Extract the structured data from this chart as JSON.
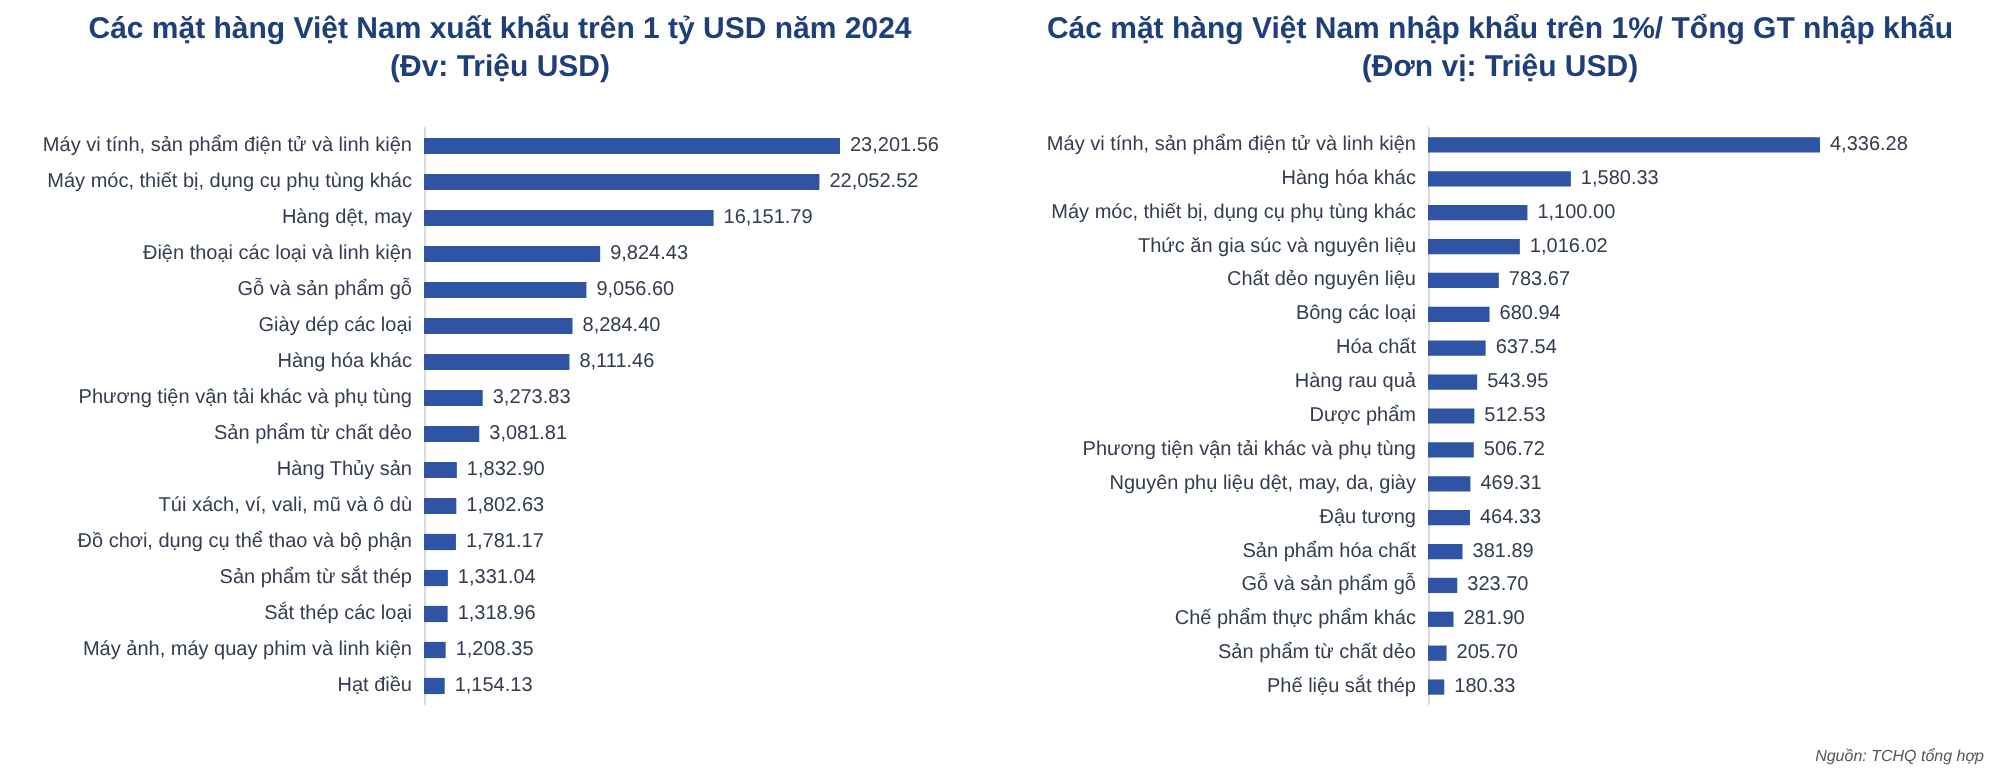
{
  "chart_data": [
    {
      "type": "bar",
      "orientation": "horizontal",
      "title": "Các mặt hàng Việt Nam xuất khẩu trên 1 tỷ USD năm 2024",
      "subtitle": "(Đv: Triệu USD)",
      "categories": [
        "Máy vi tính, sản phẩm điện tử và linh kiện",
        "Máy móc, thiết bị, dụng cụ phụ tùng khác",
        "Hàng dệt, may",
        "Điện thoại các loại và linh kiện",
        "Gỗ và sản phẩm gỗ",
        "Giày dép các loại",
        "Hàng hóa khác",
        "Phương tiện vận tải khác và phụ tùng",
        "Sản phẩm từ chất dẻo",
        "Hàng Thủy sản",
        "Túi xách, ví, vali, mũ và ô dù",
        "Đồ chơi, dụng cụ thể thao và bộ phận",
        "Sản phẩm từ sắt thép",
        "Sắt thép các loại",
        "Máy ảnh, máy quay phim và linh kiện",
        "Hạt điều"
      ],
      "values": [
        23201.56,
        22052.52,
        16151.79,
        9824.43,
        9056.6,
        8284.4,
        8111.46,
        3273.83,
        3081.81,
        1832.9,
        1802.63,
        1781.17,
        1331.04,
        1318.96,
        1208.35,
        1154.13
      ],
      "value_labels": [
        "23,201.56",
        "22,052.52",
        "16,151.79",
        "9,824.43",
        "9,056.60",
        "8,284.40",
        "8,111.46",
        "3,273.83",
        "3,081.81",
        "1,832.90",
        "1,802.63",
        "1,781.17",
        "1,331.04",
        "1,318.96",
        "1,208.35",
        "1,154.13"
      ],
      "color": "#2e54a3",
      "grid": false
    },
    {
      "type": "bar",
      "orientation": "horizontal",
      "title": "Các mặt hàng Việt Nam nhập khẩu trên 1%/ Tổng GT nhập khẩu",
      "subtitle": "(Đơn vị: Triệu USD)",
      "categories": [
        "Máy vi tính, sản phẩm điện tử và linh kiện",
        "Hàng hóa khác",
        "Máy móc, thiết bị, dụng cụ phụ tùng khác",
        "Thức ăn gia súc và nguyên liệu",
        "Chất dẻo nguyên liệu",
        "Bông các loại",
        "Hóa chất",
        "Hàng rau quả",
        "Dược phẩm",
        "Phương tiện vận tải khác và phụ tùng",
        "Nguyên phụ liệu dệt, may, da, giày",
        "Đậu tương",
        "Sản phẩm hóa chất",
        "Gỗ và sản phẩm gỗ",
        "Chế phẩm thực phẩm khác",
        "Sản phẩm từ chất dẻo",
        "Phế liệu sắt thép"
      ],
      "values": [
        4336.28,
        1580.33,
        1100.0,
        1016.02,
        783.67,
        680.94,
        637.54,
        543.95,
        512.53,
        506.72,
        469.31,
        464.33,
        381.89,
        323.7,
        281.9,
        205.7,
        180.33
      ],
      "value_labels": [
        "4,336.28",
        "1,580.33",
        "1,100.00",
        "1,016.02",
        "783.67",
        "680.94",
        "637.54",
        "543.95",
        "512.53",
        "506.72",
        "469.31",
        "464.33",
        "381.89",
        "323.70",
        "281.90",
        "205.70",
        "180.33"
      ],
      "color": "#2e54a3",
      "grid": false,
      "annotations": [
        "Nguồn: TCHQ tổng hợp"
      ]
    }
  ]
}
